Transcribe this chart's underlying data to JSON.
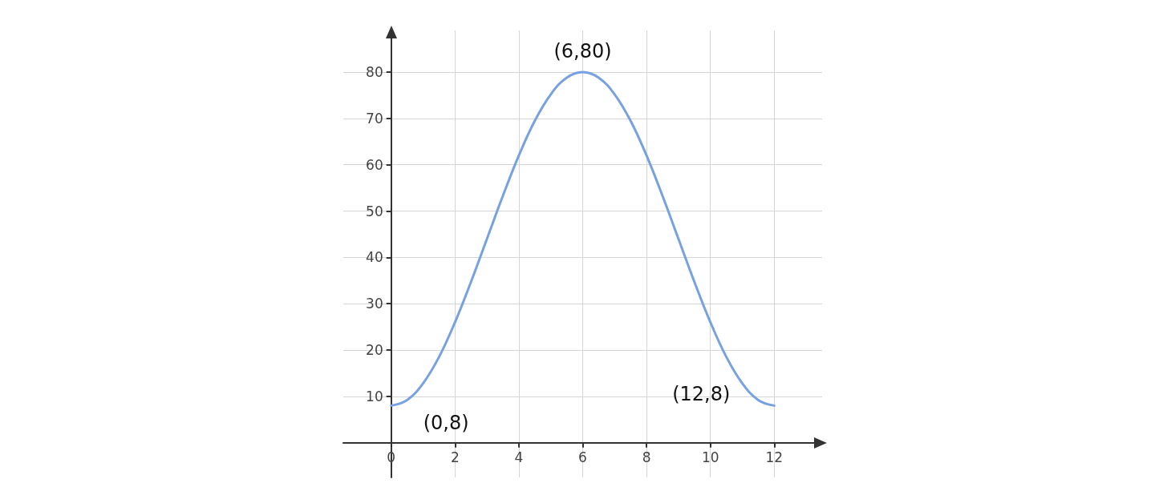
{
  "chart_data": {
    "type": "line",
    "x": [
      0,
      0.5,
      1,
      1.5,
      2,
      2.5,
      3,
      3.5,
      4,
      4.5,
      5,
      5.5,
      6,
      6.5,
      7,
      7.5,
      8,
      8.5,
      9,
      9.5,
      10,
      10.5,
      11,
      11.5,
      12
    ],
    "series": [
      {
        "color": "#77a1e0",
        "values": [
          8,
          9.2,
          12.8,
          18.5,
          26,
          34.7,
          44,
          53.3,
          62,
          69.5,
          75.2,
          78.8,
          80,
          78.8,
          75.2,
          69.5,
          62,
          53.3,
          44,
          34.7,
          26,
          18.5,
          12.8,
          9.2,
          8
        ]
      }
    ],
    "xlim": [
      -1.5,
      13.5
    ],
    "ylim": [
      -7.5,
      89
    ],
    "xticks": [
      0,
      2,
      4,
      6,
      8,
      10,
      12
    ],
    "yticks": [
      10,
      20,
      30,
      40,
      50,
      60,
      70,
      80
    ],
    "grid": true,
    "marker": "none",
    "line_style": "solid",
    "annotations": [
      {
        "text": "(6,80)",
        "x": 6,
        "y": 80
      },
      {
        "text": "(0,8)",
        "x": 0,
        "y": 8
      },
      {
        "text": "(12,8)",
        "x": 12,
        "y": 8
      }
    ]
  }
}
